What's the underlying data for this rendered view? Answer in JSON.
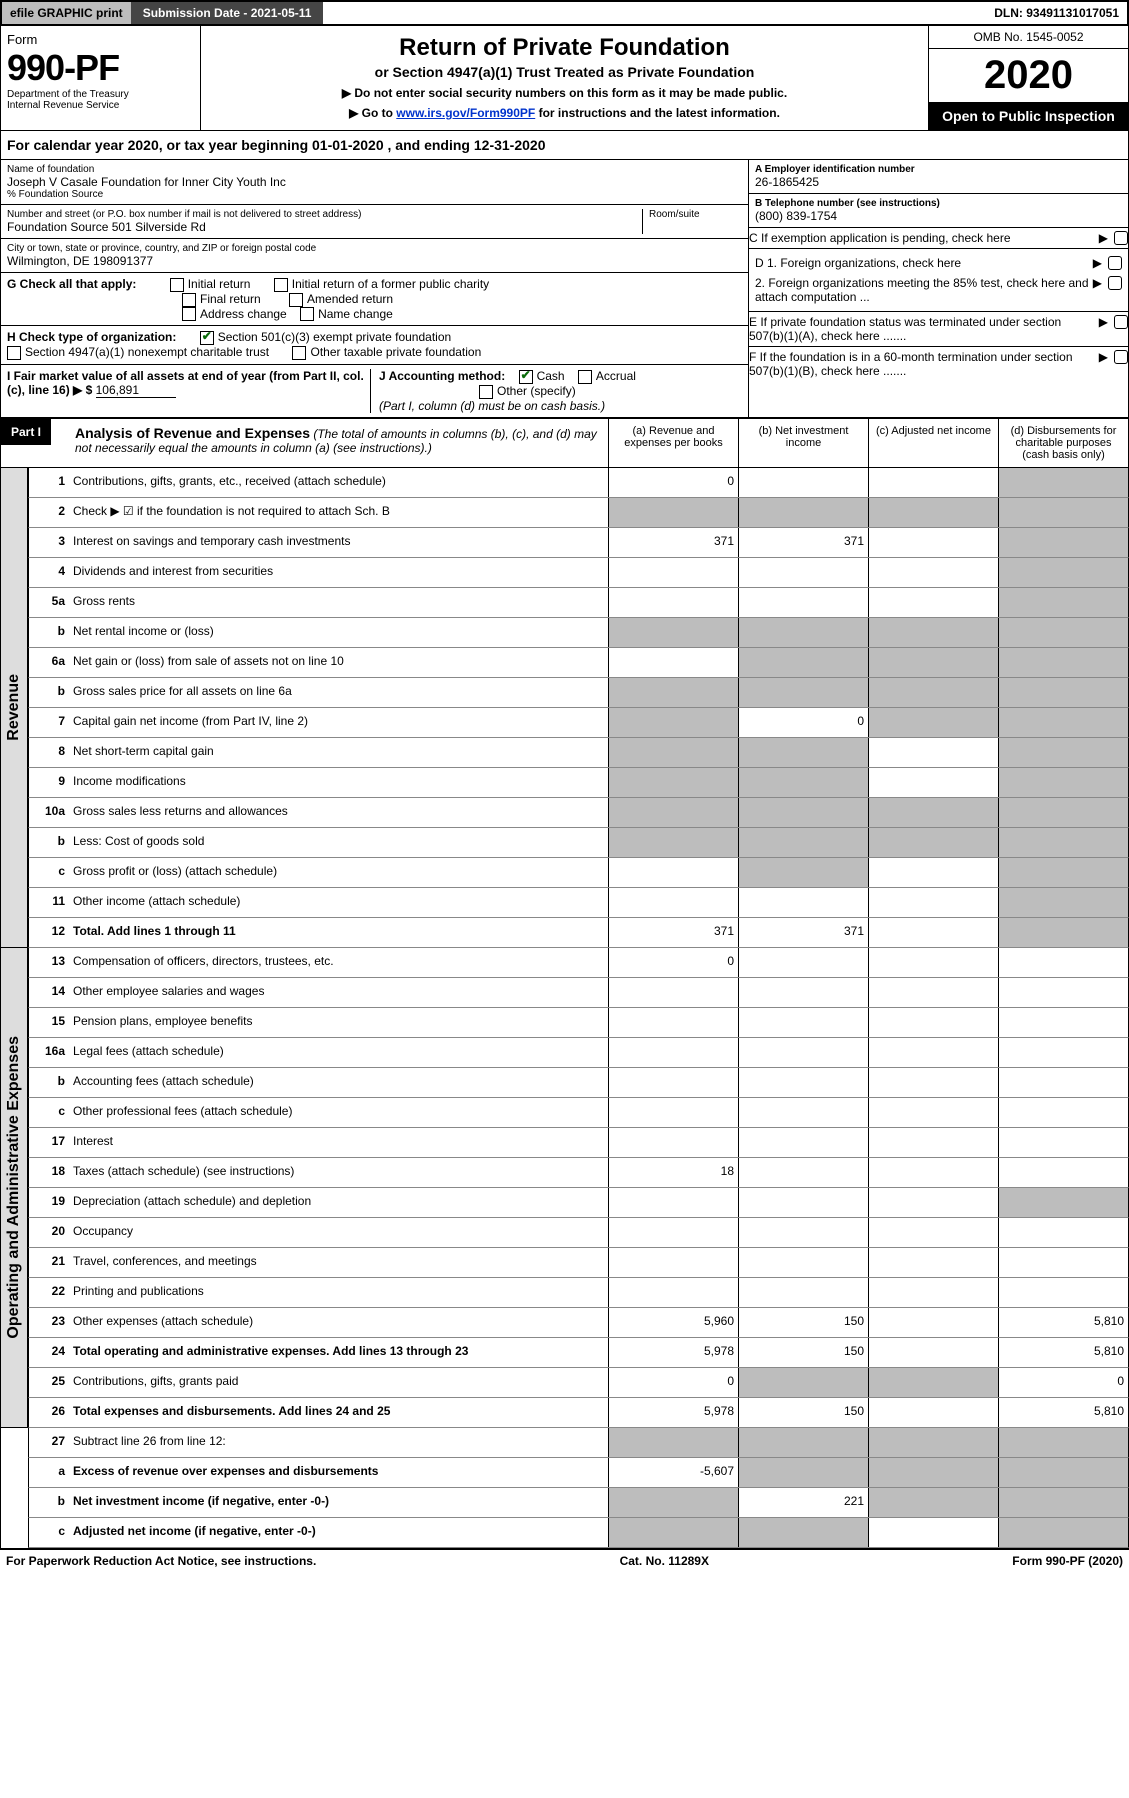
{
  "topbar": {
    "efile": "efile GRAPHIC print",
    "submission": "Submission Date - 2021-05-11",
    "dln": "DLN: 93491131017051"
  },
  "header": {
    "form_label": "Form",
    "form_number": "990-PF",
    "dept1": "Department of the Treasury",
    "dept2": "Internal Revenue Service",
    "title": "Return of Private Foundation",
    "subtitle": "or Section 4947(a)(1) Trust Treated as Private Foundation",
    "note1": "▶ Do not enter social security numbers on this form as it may be made public.",
    "note2_pre": "▶ Go to ",
    "note2_link": "www.irs.gov/Form990PF",
    "note2_post": " for instructions and the latest information.",
    "omb": "OMB No. 1545-0052",
    "year": "2020",
    "inspection": "Open to Public Inspection"
  },
  "calendar": {
    "text_pre": "For calendar year 2020, or tax year beginning ",
    "begin": "01-01-2020",
    "mid": " , and ending ",
    "end": "12-31-2020"
  },
  "org": {
    "name_label": "Name of foundation",
    "name1": "Joseph V Casale Foundation for Inner City Youth Inc",
    "name2": "% Foundation Source",
    "addr_label": "Number and street (or P.O. box number if mail is not delivered to street address)",
    "addr": "Foundation Source 501 Silverside Rd",
    "room_label": "Room/suite",
    "city_label": "City or town, state or province, country, and ZIP or foreign postal code",
    "city": "Wilmington, DE  198091377",
    "ein_label": "A Employer identification number",
    "ein": "26-1865425",
    "phone_label": "B Telephone number (see instructions)",
    "phone": "(800) 839-1754",
    "c_label": "C If exemption application is pending, check here"
  },
  "checks": {
    "g_label": "G Check all that apply:",
    "g1": "Initial return",
    "g2": "Initial return of a former public charity",
    "g3": "Final return",
    "g4": "Amended return",
    "g5": "Address change",
    "g6": "Name change",
    "h_label": "H Check type of organization:",
    "h1": "Section 501(c)(3) exempt private foundation",
    "h2": "Section 4947(a)(1) nonexempt charitable trust",
    "h3": "Other taxable private foundation",
    "i_label": "I Fair market value of all assets at end of year (from Part II, col. (c), line 16) ▶ $",
    "i_val": "106,891",
    "j_label": "J Accounting method:",
    "j1": "Cash",
    "j2": "Accrual",
    "j3": "Other (specify)",
    "j_note": "(Part I, column (d) must be on cash basis.)",
    "d1": "D 1. Foreign organizations, check here",
    "d2": "2. Foreign organizations meeting the 85% test, check here and attach computation ...",
    "e": "E If private foundation status was terminated under section 507(b)(1)(A), check here .......",
    "f": "F If the foundation is in a 60-month termination under section 507(b)(1)(B), check here ......."
  },
  "part1": {
    "label": "Part I",
    "title": "Analysis of Revenue and Expenses",
    "title_note": "(The total of amounts in columns (b), (c), and (d) may not necessarily equal the amounts in column (a) (see instructions).)",
    "col_a": "(a) Revenue and expenses per books",
    "col_b": "(b) Net investment income",
    "col_c": "(c) Adjusted net income",
    "col_d": "(d) Disbursements for charitable purposes (cash basis only)"
  },
  "sidebar1": "Revenue",
  "sidebar2": "Operating and Administrative Expenses",
  "rows": [
    {
      "n": "1",
      "label": "Contributions, gifts, grants, etc., received (attach schedule)",
      "a": "0",
      "b": "",
      "c": "",
      "d": "",
      "dgrey": true
    },
    {
      "n": "2",
      "label": "Check ▶ ☑ if the foundation is not required to attach Sch. B",
      "a": "",
      "b": "",
      "c": "",
      "d": "",
      "agrey": true,
      "bgrey": true,
      "cgrey": true,
      "dgrey": true,
      "bold_not": true
    },
    {
      "n": "3",
      "label": "Interest on savings and temporary cash investments",
      "a": "371",
      "b": "371",
      "c": "",
      "d": "",
      "dgrey": true
    },
    {
      "n": "4",
      "label": "Dividends and interest from securities",
      "a": "",
      "b": "",
      "c": "",
      "d": "",
      "dgrey": true
    },
    {
      "n": "5a",
      "label": "Gross rents",
      "a": "",
      "b": "",
      "c": "",
      "d": "",
      "dgrey": true
    },
    {
      "n": "b",
      "label": "Net rental income or (loss)",
      "a": "",
      "b": "",
      "c": "",
      "d": "",
      "agrey": true,
      "bgrey": true,
      "cgrey": true,
      "dgrey": true
    },
    {
      "n": "6a",
      "label": "Net gain or (loss) from sale of assets not on line 10",
      "a": "",
      "b": "",
      "c": "",
      "d": "",
      "bgrey": true,
      "cgrey": true,
      "dgrey": true
    },
    {
      "n": "b",
      "label": "Gross sales price for all assets on line 6a",
      "a": "",
      "b": "",
      "c": "",
      "d": "",
      "agrey": true,
      "bgrey": true,
      "cgrey": true,
      "dgrey": true
    },
    {
      "n": "7",
      "label": "Capital gain net income (from Part IV, line 2)",
      "a": "",
      "b": "0",
      "c": "",
      "d": "",
      "agrey": true,
      "cgrey": true,
      "dgrey": true
    },
    {
      "n": "8",
      "label": "Net short-term capital gain",
      "a": "",
      "b": "",
      "c": "",
      "d": "",
      "agrey": true,
      "bgrey": true,
      "dgrey": true
    },
    {
      "n": "9",
      "label": "Income modifications",
      "a": "",
      "b": "",
      "c": "",
      "d": "",
      "agrey": true,
      "bgrey": true,
      "dgrey": true
    },
    {
      "n": "10a",
      "label": "Gross sales less returns and allowances",
      "a": "",
      "b": "",
      "c": "",
      "d": "",
      "agrey": true,
      "bgrey": true,
      "cgrey": true,
      "dgrey": true
    },
    {
      "n": "b",
      "label": "Less: Cost of goods sold",
      "a": "",
      "b": "",
      "c": "",
      "d": "",
      "agrey": true,
      "bgrey": true,
      "cgrey": true,
      "dgrey": true
    },
    {
      "n": "c",
      "label": "Gross profit or (loss) (attach schedule)",
      "a": "",
      "b": "",
      "c": "",
      "d": "",
      "bgrey": true,
      "dgrey": true
    },
    {
      "n": "11",
      "label": "Other income (attach schedule)",
      "a": "",
      "b": "",
      "c": "",
      "d": "",
      "dgrey": true
    },
    {
      "n": "12",
      "label": "Total. Add lines 1 through 11",
      "a": "371",
      "b": "371",
      "c": "",
      "d": "",
      "bold": true,
      "dgrey": true
    }
  ],
  "rows2": [
    {
      "n": "13",
      "label": "Compensation of officers, directors, trustees, etc.",
      "a": "0",
      "b": "",
      "c": "",
      "d": ""
    },
    {
      "n": "14",
      "label": "Other employee salaries and wages",
      "a": "",
      "b": "",
      "c": "",
      "d": ""
    },
    {
      "n": "15",
      "label": "Pension plans, employee benefits",
      "a": "",
      "b": "",
      "c": "",
      "d": ""
    },
    {
      "n": "16a",
      "label": "Legal fees (attach schedule)",
      "a": "",
      "b": "",
      "c": "",
      "d": ""
    },
    {
      "n": "b",
      "label": "Accounting fees (attach schedule)",
      "a": "",
      "b": "",
      "c": "",
      "d": ""
    },
    {
      "n": "c",
      "label": "Other professional fees (attach schedule)",
      "a": "",
      "b": "",
      "c": "",
      "d": ""
    },
    {
      "n": "17",
      "label": "Interest",
      "a": "",
      "b": "",
      "c": "",
      "d": ""
    },
    {
      "n": "18",
      "label": "Taxes (attach schedule) (see instructions)",
      "a": "18",
      "b": "",
      "c": "",
      "d": ""
    },
    {
      "n": "19",
      "label": "Depreciation (attach schedule) and depletion",
      "a": "",
      "b": "",
      "c": "",
      "d": "",
      "dgrey": true
    },
    {
      "n": "20",
      "label": "Occupancy",
      "a": "",
      "b": "",
      "c": "",
      "d": ""
    },
    {
      "n": "21",
      "label": "Travel, conferences, and meetings",
      "a": "",
      "b": "",
      "c": "",
      "d": ""
    },
    {
      "n": "22",
      "label": "Printing and publications",
      "a": "",
      "b": "",
      "c": "",
      "d": ""
    },
    {
      "n": "23",
      "label": "Other expenses (attach schedule)",
      "a": "5,960",
      "b": "150",
      "c": "",
      "d": "5,810"
    },
    {
      "n": "24",
      "label": "Total operating and administrative expenses. Add lines 13 through 23",
      "a": "5,978",
      "b": "150",
      "c": "",
      "d": "5,810",
      "bold": true
    },
    {
      "n": "25",
      "label": "Contributions, gifts, grants paid",
      "a": "0",
      "b": "",
      "c": "",
      "d": "0",
      "bgrey": true,
      "cgrey": true
    },
    {
      "n": "26",
      "label": "Total expenses and disbursements. Add lines 24 and 25",
      "a": "5,978",
      "b": "150",
      "c": "",
      "d": "5,810",
      "bold": true
    }
  ],
  "rows3": [
    {
      "n": "27",
      "label": "Subtract line 26 from line 12:",
      "a": "",
      "b": "",
      "c": "",
      "d": "",
      "agrey": true,
      "bgrey": true,
      "cgrey": true,
      "dgrey": true
    },
    {
      "n": "a",
      "label": "Excess of revenue over expenses and disbursements",
      "a": "-5,607",
      "b": "",
      "c": "",
      "d": "",
      "bold": true,
      "bgrey": true,
      "cgrey": true,
      "dgrey": true
    },
    {
      "n": "b",
      "label": "Net investment income (if negative, enter -0-)",
      "a": "",
      "b": "221",
      "c": "",
      "d": "",
      "bold": true,
      "agrey": true,
      "cgrey": true,
      "dgrey": true
    },
    {
      "n": "c",
      "label": "Adjusted net income (if negative, enter -0-)",
      "a": "",
      "b": "",
      "c": "",
      "d": "",
      "bold": true,
      "agrey": true,
      "bgrey": true,
      "dgrey": true
    }
  ],
  "footer": {
    "left": "For Paperwork Reduction Act Notice, see instructions.",
    "mid": "Cat. No. 11289X",
    "right": "Form 990-PF (2020)"
  }
}
